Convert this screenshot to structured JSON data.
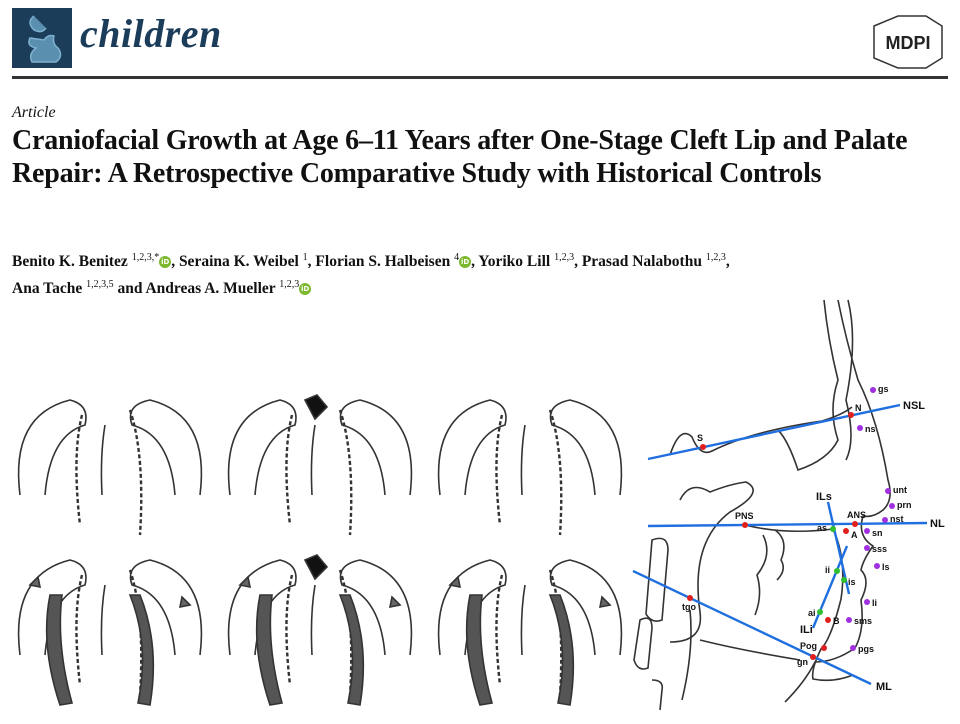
{
  "header": {
    "journal_name": "children",
    "publisher_logo_text": "MDPI"
  },
  "article": {
    "type": "Article",
    "title": "Craniofacial Growth at Age 6–11 Years after One-Stage Cleft Lip and Palate Repair: A Retrospective Comparative Study with Historical Controls",
    "authors": [
      {
        "name": "Benito K. Benitez",
        "affiliations": "1,2,3,*",
        "orcid": true,
        "sep": ", "
      },
      {
        "name": "Seraina K. Weibel",
        "affiliations": "1",
        "orcid": false,
        "sep": ", "
      },
      {
        "name": "Florian S. Halbeisen",
        "affiliations": "4",
        "orcid": true,
        "sep": ", "
      },
      {
        "name": "Yoriko Lill",
        "affiliations": "1,2,3",
        "orcid": false,
        "sep": ", "
      },
      {
        "name": "Prasad Nalabothu",
        "affiliations": "1,2,3",
        "orcid": false,
        "sep": ","
      },
      {
        "name": "Ana Tache",
        "affiliations": "1,2,3,5",
        "orcid": false,
        "sep": " and "
      },
      {
        "name": "Andreas A. Mueller",
        "affiliations": "1,2,3",
        "orcid": true,
        "sep": ""
      }
    ],
    "orcid_icon_text": "iD"
  },
  "figure": {
    "reference_lines": [
      "NSL",
      "NL",
      "ML",
      "ILs",
      "ILi"
    ],
    "landmarks_skeletal": [
      "S",
      "N",
      "PNS",
      "ANS",
      "A",
      "B",
      "Pog",
      "gn",
      "tgo"
    ],
    "landmarks_dental": [
      "as",
      "ii",
      "is",
      "ai"
    ],
    "landmarks_soft_tissue": [
      "gs",
      "ns",
      "unt",
      "prn",
      "nst",
      "sn",
      "sss",
      "ls",
      "li",
      "sms",
      "pgs"
    ],
    "colors": {
      "skeletal": "#e0201c",
      "dental": "#2fbf2f",
      "soft_tissue": "#a030e0",
      "lines": "#1f6fe0"
    }
  }
}
